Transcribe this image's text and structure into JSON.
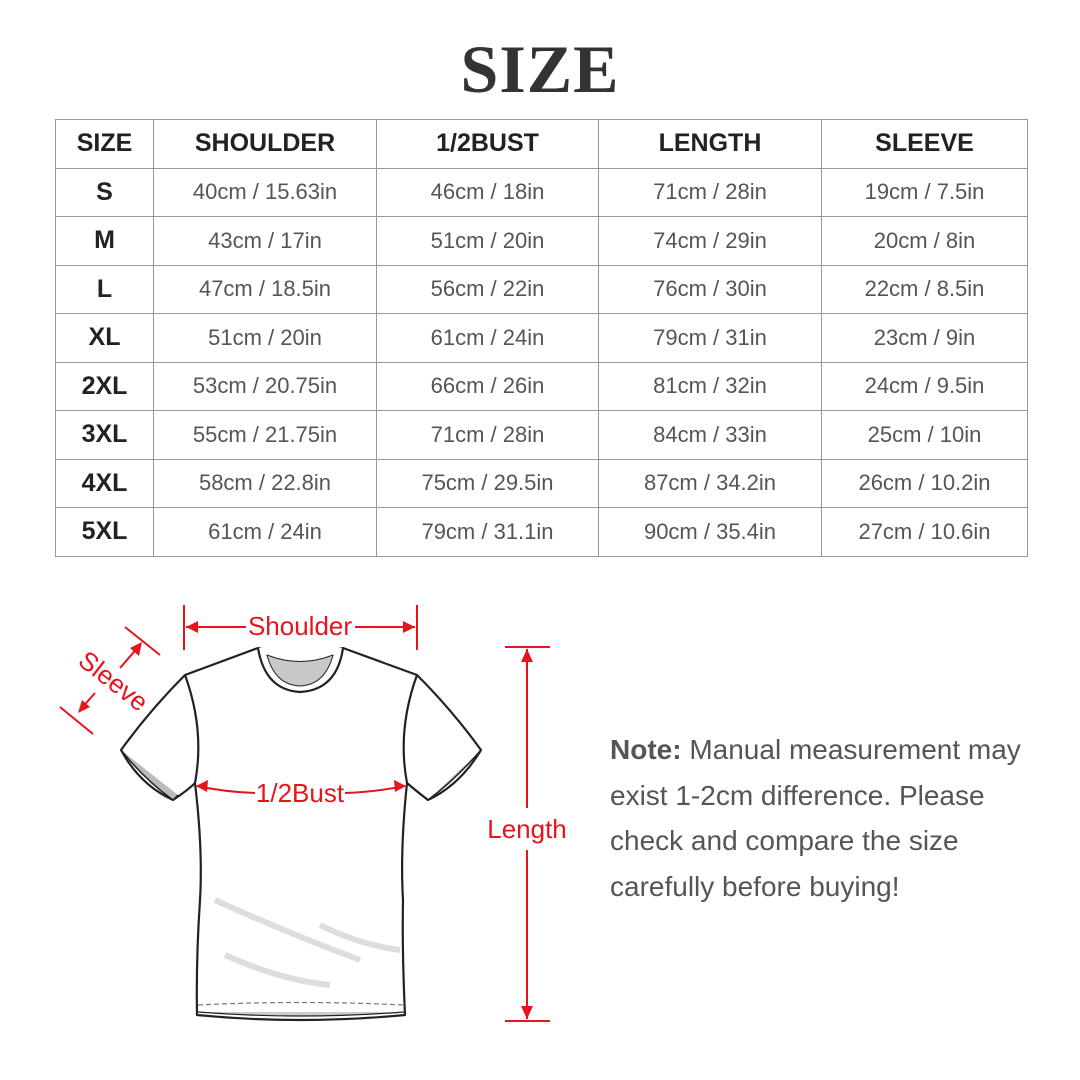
{
  "title": "SIZE",
  "table": {
    "headers": [
      "SIZE",
      "SHOULDER",
      "1/2BUST",
      "LENGTH",
      "SLEEVE"
    ],
    "rows": [
      [
        "S",
        "40cm / 15.63in",
        "46cm / 18in",
        "71cm / 28in",
        "19cm / 7.5in"
      ],
      [
        "M",
        "43cm / 17in",
        "51cm / 20in",
        "74cm / 29in",
        "20cm / 8in"
      ],
      [
        "L",
        "47cm / 18.5in",
        "56cm / 22in",
        "76cm / 30in",
        "22cm / 8.5in"
      ],
      [
        "XL",
        "51cm / 20in",
        "61cm / 24in",
        "79cm / 31in",
        "23cm / 9in"
      ],
      [
        "2XL",
        "53cm / 20.75in",
        "66cm / 26in",
        "81cm / 32in",
        "24cm / 9.5in"
      ],
      [
        "3XL",
        "55cm / 21.75in",
        "71cm / 28in",
        "84cm / 33in",
        "25cm / 10in"
      ],
      [
        "4XL",
        "58cm / 22.8in",
        "75cm / 29.5in",
        "87cm / 34.2in",
        "26cm / 10.2in"
      ],
      [
        "5XL",
        "61cm / 24in",
        "79cm / 31.1in",
        "90cm / 35.4in",
        "27cm / 10.6in"
      ]
    ]
  },
  "diagram": {
    "shoulder": "Shoulder",
    "sleeve": "Sleeve",
    "bust": "1/2Bust",
    "length": "Length",
    "accent": "#e8141c"
  },
  "note": {
    "label": "Note:",
    "text": " Manual measurement may exist 1-2cm difference. Please check and compare the size carefully before buying!"
  }
}
